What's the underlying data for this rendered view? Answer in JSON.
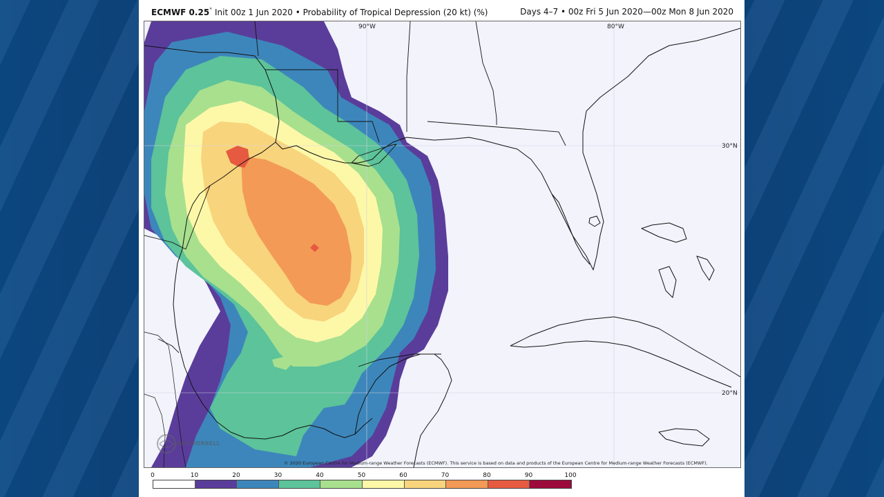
{
  "header": {
    "model": "ECMWF 0.25",
    "degree": "°",
    "title": "Init 00z 1 Jun 2020 • Probability of Tropical Depression (20 kt) (%)",
    "valid": "Days 4–7 • 00z Fri 5 Jun 2020—00z Mon 8 Jun 2020"
  },
  "map": {
    "grid_labels": {
      "lon_90": "90°W",
      "lon_80": "80°W",
      "lat_30": "30°N",
      "lat_20": "20°N"
    },
    "copyright": "© 2020 European Centre for Medium-range Weather Forecasts (ECMWF). This service is based on data and products of the European Centre for Medium-range Weather Forecasts (ECMWF).",
    "logo_text": "WEATHERBELL",
    "colors": {
      "c10": "#5a3d9a",
      "c20": "#3d86bb",
      "c30": "#5cc39a",
      "c40": "#a8e08e",
      "c50": "#fdf8a8",
      "c60": "#f8d47c",
      "c70": "#f39a56",
      "c80": "#e55a40",
      "ocean": "#f2f3fb",
      "coast": "#111111"
    }
  },
  "legend": {
    "ticks": [
      "0",
      "10",
      "20",
      "30",
      "40",
      "50",
      "60",
      "70",
      "80",
      "90",
      "100"
    ],
    "colors": [
      "#ffffff",
      "#5a3d9a",
      "#3d86bb",
      "#5cc39a",
      "#a8e08e",
      "#fdf8a8",
      "#f8d47c",
      "#f39a56",
      "#e55a40",
      "#9c0a3c"
    ]
  }
}
